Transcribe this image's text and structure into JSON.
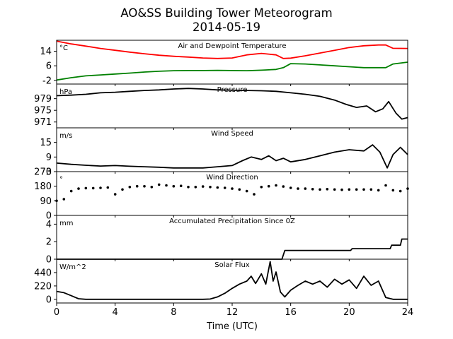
{
  "figure": {
    "title_line1": "AO&SS Building Tower Meteorogram",
    "title_line2": "2014-05-19",
    "xlabel": "Time (UTC)"
  },
  "chart_data": [
    {
      "type": "line",
      "title": "Air and Dewpoint Temperature",
      "unit": "°C",
      "xlim": [
        0,
        24
      ],
      "ylim": [
        -4,
        20
      ],
      "yticks": [
        -2,
        6,
        14
      ],
      "x": [
        0,
        1,
        2,
        3,
        4,
        5,
        6,
        7,
        8,
        9,
        10,
        11,
        12,
        13,
        14,
        15,
        15.5,
        16,
        17,
        18,
        19,
        20,
        21,
        22,
        22.5,
        23,
        24
      ],
      "series": [
        {
          "color": "#ff0000",
          "values": [
            19.5,
            18.0,
            16.8,
            15.5,
            14.5,
            13.5,
            12.6,
            11.8,
            11.2,
            10.8,
            10.3,
            10.0,
            10.3,
            12.0,
            12.8,
            12.0,
            10.0,
            10.2,
            11.5,
            13.0,
            14.5,
            16.0,
            17.0,
            17.4,
            17.4,
            15.6,
            15.5
          ]
        },
        {
          "color": "#008000",
          "values": [
            -1.8,
            -0.5,
            0.5,
            1.0,
            1.5,
            2.0,
            2.6,
            3.0,
            3.3,
            3.4,
            3.4,
            3.5,
            3.4,
            3.3,
            3.6,
            4.0,
            5.0,
            7.2,
            7.0,
            6.5,
            6.0,
            5.5,
            5.0,
            5.0,
            5.0,
            7.0,
            8.0
          ]
        }
      ]
    },
    {
      "type": "line",
      "title": "Pressure",
      "unit": "hPa",
      "xlim": [
        0,
        24
      ],
      "ylim": [
        969,
        984
      ],
      "yticks": [
        971,
        975,
        979
      ],
      "x": [
        0,
        1,
        2,
        3,
        4,
        5,
        6,
        7,
        8,
        9,
        10,
        11,
        12,
        13,
        14,
        15,
        16,
        17,
        18,
        19,
        19.8,
        20.5,
        21.2,
        21.8,
        22.3,
        22.7,
        23.2,
        23.6,
        24
      ],
      "series": [
        {
          "color": "#000000",
          "values": [
            980.0,
            980.2,
            980.5,
            981.0,
            981.2,
            981.5,
            981.8,
            982.0,
            982.3,
            982.5,
            982.3,
            982.0,
            981.9,
            981.8,
            981.7,
            981.5,
            981.0,
            980.5,
            979.8,
            978.5,
            977.0,
            976.0,
            976.5,
            974.5,
            975.5,
            978.0,
            974.0,
            972.0,
            972.5
          ]
        }
      ]
    },
    {
      "type": "line",
      "title": "Wind Speed",
      "unit": "m/s",
      "xlim": [
        0,
        24
      ],
      "ylim": [
        3,
        21
      ],
      "yticks": [
        3,
        9,
        15
      ],
      "x": [
        0,
        1,
        2,
        3,
        4,
        5,
        6,
        7,
        8,
        9,
        10,
        11,
        12,
        12.7,
        13.3,
        14,
        14.5,
        15,
        15.5,
        16,
        17,
        18,
        19,
        20,
        21,
        21.6,
        22.1,
        22.6,
        23,
        23.5,
        24
      ],
      "series": [
        {
          "color": "#000000",
          "values": [
            6.5,
            6.0,
            5.6,
            5.3,
            5.5,
            5.2,
            5.0,
            4.8,
            4.5,
            4.5,
            4.5,
            5.0,
            5.5,
            7.5,
            9.0,
            8.0,
            9.5,
            7.5,
            8.5,
            7.0,
            8.0,
            9.5,
            11.0,
            12.0,
            11.5,
            14.0,
            11.0,
            4.5,
            10.0,
            13.0,
            10.0
          ]
        }
      ]
    },
    {
      "type": "scatter",
      "title": "Wind Direction",
      "unit": "°",
      "xlim": [
        0,
        24
      ],
      "ylim": [
        0,
        270
      ],
      "yticks": [
        0,
        90,
        180,
        270
      ],
      "x": [
        0,
        0.5,
        1,
        1.5,
        2,
        2.5,
        3,
        3.5,
        4,
        4.5,
        5,
        5.5,
        6,
        6.5,
        7,
        7.5,
        8,
        8.5,
        9,
        9.5,
        10,
        10.5,
        11,
        11.5,
        12,
        12.5,
        13,
        13.5,
        14,
        14.5,
        15,
        15.5,
        16,
        16.5,
        17,
        17.5,
        18,
        18.5,
        19,
        19.5,
        20,
        20.5,
        21,
        21.5,
        22,
        22.5,
        23,
        23.5,
        24
      ],
      "series": [
        {
          "color": "#000000",
          "values": [
            90,
            100,
            150,
            165,
            168,
            168,
            170,
            172,
            130,
            160,
            175,
            180,
            180,
            175,
            190,
            185,
            180,
            182,
            175,
            175,
            178,
            175,
            172,
            170,
            165,
            160,
            150,
            130,
            175,
            180,
            185,
            178,
            170,
            165,
            165,
            162,
            160,
            162,
            160,
            158,
            160,
            160,
            160,
            160,
            155,
            185,
            155,
            150,
            165
          ]
        }
      ]
    },
    {
      "type": "line",
      "title": "Accumulated Precipitation Since 0Z",
      "unit": "mm",
      "xlim": [
        0,
        24
      ],
      "ylim": [
        0,
        5
      ],
      "yticks": [
        0,
        2,
        4
      ],
      "x": [
        0,
        15.4,
        15.6,
        20.1,
        20.2,
        22.8,
        22.9,
        23.5,
        23.6,
        24
      ],
      "series": [
        {
          "color": "#000000",
          "values": [
            0,
            0,
            1.0,
            1.0,
            1.2,
            1.2,
            1.6,
            1.6,
            2.3,
            2.3
          ]
        }
      ]
    },
    {
      "type": "line",
      "title": "Solar Flux",
      "unit": "W/m^2",
      "xlim": [
        0,
        24
      ],
      "ylim": [
        -60,
        660
      ],
      "yticks": [
        0,
        220,
        440
      ],
      "x": [
        0,
        0.5,
        1,
        1.5,
        2,
        3,
        4,
        5,
        6,
        7,
        8,
        9,
        10,
        10.5,
        11,
        11.5,
        12,
        12.5,
        13,
        13.3,
        13.6,
        14,
        14.3,
        14.6,
        14.8,
        15,
        15.3,
        15.6,
        16,
        16.5,
        17,
        17.5,
        18,
        18.5,
        19,
        19.5,
        20,
        20.5,
        21,
        21.5,
        22,
        22.5,
        23,
        24
      ],
      "series": [
        {
          "color": "#000000",
          "values": [
            130,
            110,
            60,
            10,
            0,
            0,
            0,
            0,
            0,
            0,
            0,
            0,
            0,
            5,
            40,
            100,
            180,
            250,
            300,
            380,
            260,
            420,
            250,
            620,
            300,
            450,
            120,
            40,
            150,
            230,
            300,
            250,
            300,
            200,
            330,
            250,
            320,
            180,
            380,
            230,
            300,
            30,
            0,
            0
          ]
        }
      ]
    }
  ]
}
